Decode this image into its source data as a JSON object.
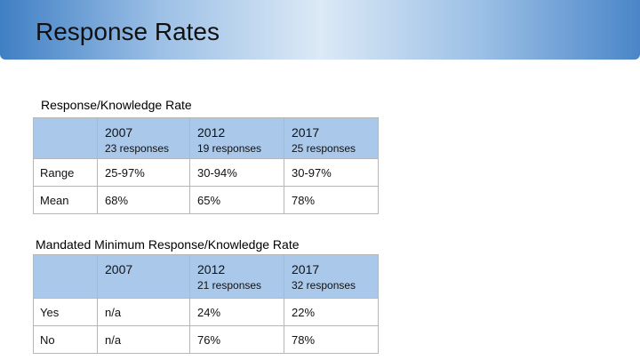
{
  "slide": {
    "title": "Response Rates"
  },
  "table1": {
    "title": "Response/Knowledge Rate",
    "headers": [
      {
        "year": "2007",
        "responses": "23 responses"
      },
      {
        "year": "2012",
        "responses": "19 responses"
      },
      {
        "year": "2017",
        "responses": "25 responses"
      }
    ],
    "rows": [
      {
        "label": "Range",
        "values": [
          "25-97%",
          "30-94%",
          "30-97%"
        ]
      },
      {
        "label": "Mean",
        "values": [
          "68%",
          "65%",
          "78%"
        ]
      }
    ]
  },
  "table2": {
    "title": "Mandated Minimum Response/Knowledge Rate",
    "headers": [
      {
        "year": "2007",
        "responses": ""
      },
      {
        "year": "2012",
        "responses": "21 responses"
      },
      {
        "year": "2017",
        "responses": "32 responses"
      }
    ],
    "rows": [
      {
        "label": "Yes",
        "values": [
          "n/a",
          "24%",
          "22%"
        ]
      },
      {
        "label": "No",
        "values": [
          "n/a",
          "76%",
          "78%"
        ]
      }
    ]
  },
  "colors": {
    "header_fill": "#a9c8ea",
    "title_bar_accent": "#3f7fc4"
  }
}
